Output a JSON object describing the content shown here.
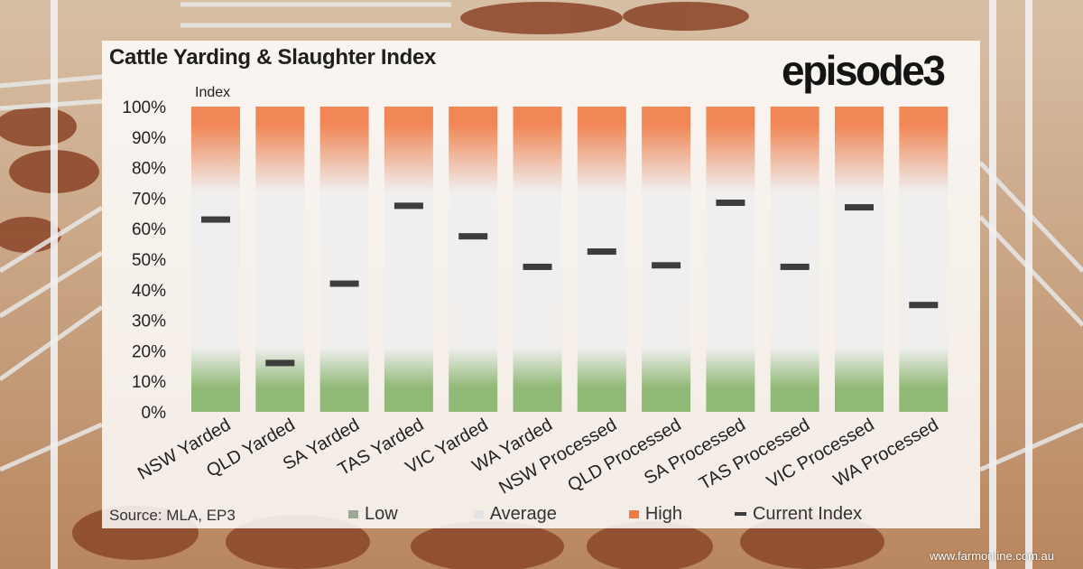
{
  "title": "Cattle Yarding & Slaughter Index",
  "logo": "episode3",
  "source": "Source: MLA, EP3",
  "watermark": "www.farmonline.com.au",
  "colors": {
    "low": "#86b36a",
    "average": "#ececec",
    "high": "#f07b45",
    "current": "#3d3d3d"
  },
  "legend": [
    {
      "label": "Low",
      "color": "#9ba896",
      "kind": "swatch"
    },
    {
      "label": "Average",
      "color": "#e3e3e3",
      "kind": "swatch"
    },
    {
      "label": "High",
      "color": "#f07b45",
      "kind": "swatch"
    },
    {
      "label": "Current Index",
      "color": "#3d3d3d",
      "kind": "line"
    }
  ],
  "chart_data": {
    "type": "bar",
    "ylabel": "Index",
    "xlabel": "",
    "ylim": [
      0,
      100
    ],
    "yticks": [
      "0%",
      "10%",
      "20%",
      "30%",
      "40%",
      "50%",
      "60%",
      "70%",
      "80%",
      "90%",
      "100%"
    ],
    "categories": [
      "NSW Yarded",
      "QLD Yarded",
      "SA Yarded",
      "TAS Yarded",
      "VIC Yarded",
      "WA Yarded",
      "NSW Processed",
      "QLD Processed",
      "SA Processed",
      "TAS Processed",
      "VIC Processed",
      "WA Processed"
    ],
    "series": [
      {
        "name": "Current Index",
        "values": [
          63,
          16,
          42,
          67.5,
          57.5,
          47.5,
          52.5,
          48,
          68.5,
          47.5,
          67,
          35
        ]
      }
    ],
    "bands": {
      "low_max": 20,
      "high_min": 80,
      "max": 100
    },
    "grid": false,
    "legend_position": "bottom"
  }
}
